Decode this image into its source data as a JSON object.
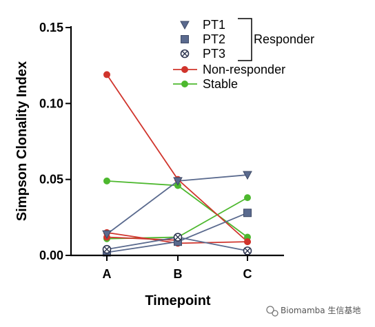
{
  "chart_data": {
    "type": "line",
    "title": "",
    "xlabel": "Timepoint",
    "ylabel": "Simpson Clonality Index",
    "categories": [
      "A",
      "B",
      "C"
    ],
    "ylim": [
      0,
      0.15
    ],
    "yticks": [
      "0.00",
      "0.05",
      "0.10",
      "0.15"
    ],
    "legend": {
      "placement": "top-right",
      "entries": [
        {
          "label": "PT1",
          "marker": "triangle-down",
          "color": "#5a6a8e"
        },
        {
          "label": "PT2",
          "marker": "square",
          "color": "#5a6a8e"
        },
        {
          "label": "PT3",
          "marker": "circle-x",
          "color": "#5a6a8e"
        },
        {
          "label": "Non-responder",
          "marker": "circle",
          "color": "#d0342c"
        },
        {
          "label": "Stable",
          "marker": "circle",
          "color": "#4db82e"
        }
      ],
      "group_label": "Responder"
    },
    "series": [
      {
        "name": "PT1",
        "group": "Responder",
        "marker": "triangle-down",
        "color": "#5a6a8e",
        "values": [
          0.014,
          0.049,
          0.053
        ]
      },
      {
        "name": "PT2",
        "group": "Responder",
        "marker": "square",
        "color": "#5a6a8e",
        "values": [
          0.002,
          0.009,
          0.028
        ]
      },
      {
        "name": "PT3",
        "group": "Responder",
        "marker": "circle-x",
        "color": "#5a6a8e",
        "values": [
          0.004,
          0.012,
          0.003
        ]
      },
      {
        "group": "Non-responder",
        "marker": "circle",
        "color": "#d0342c",
        "values": [
          0.119,
          0.05,
          0.009
        ]
      },
      {
        "group": "Non-responder",
        "marker": "circle",
        "color": "#d0342c",
        "values": [
          0.015,
          0.008,
          0.009
        ]
      },
      {
        "group": "Non-responder",
        "marker": "circle",
        "color": "#d0342c",
        "values": [
          0.012,
          0.01,
          null
        ]
      },
      {
        "group": "Stable",
        "marker": "circle",
        "color": "#4db82e",
        "values": [
          0.049,
          0.046,
          0.012
        ]
      },
      {
        "group": "Stable",
        "marker": "circle",
        "color": "#4db82e",
        "values": [
          0.011,
          0.012,
          0.038
        ]
      }
    ]
  },
  "watermark": {
    "text": "Biomamba 生信基地",
    "icon": "wechat-icon"
  }
}
